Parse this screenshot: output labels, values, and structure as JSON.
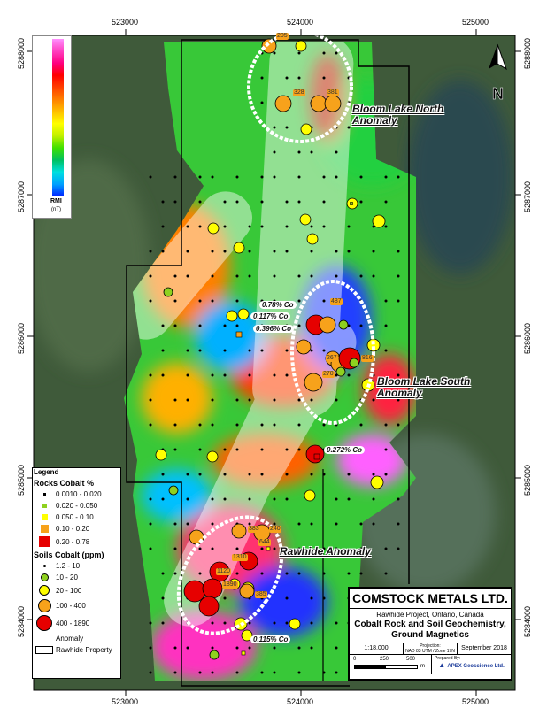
{
  "axes": {
    "x_ticks": [
      "523000",
      "524000",
      "525000"
    ],
    "y_ticks": [
      "5288000",
      "5287000",
      "5286000",
      "5285000",
      "5284000"
    ]
  },
  "colorbar": {
    "label": "RMI",
    "unit": "(nT)",
    "colors": [
      "#0020ff",
      "#00a0ff",
      "#00e0e0",
      "#00c060",
      "#40e000",
      "#c0f000",
      "#ffff00",
      "#ffc000",
      "#ff8000",
      "#ff4000",
      "#ff0000",
      "#ff0080",
      "#ff40c0",
      "#ff90ff"
    ]
  },
  "anomalies": {
    "north": [
      "Bloom Lake North",
      "Anomaly"
    ],
    "south": [
      "Bloom Lake South",
      "Anomaly"
    ],
    "rawhide": "Rawhide Anomaly"
  },
  "rock_labels": [
    "0.78% Co",
    "0.117% Co",
    "0.396% Co",
    "0.272% Co",
    "0.115% Co"
  ],
  "soil_labels": [
    "205",
    "328",
    "381",
    "487",
    "267",
    "816",
    "270",
    "383",
    "240",
    "644",
    "1310",
    "1120",
    "1890",
    "385"
  ],
  "legend": {
    "title": "Legend",
    "rocks_title": "Rocks Cobalt %",
    "rocks": [
      "0.0010 - 0.020",
      "0.020 - 0.050",
      "0.050 - 0.10",
      "0.10 - 0.20",
      "0.20 - 0.78"
    ],
    "soils_title": "Soils Cobalt (ppm)",
    "soils": [
      "1.2 - 10",
      "10 - 20",
      "20 - 100",
      "100 - 400",
      "400 - 1890"
    ],
    "anomaly": "Anomaly",
    "property": "Rawhide Property",
    "colors": [
      "#000000",
      "#8fd11f",
      "#ffff00",
      "#f7a21b",
      "#e60000"
    ]
  },
  "title_block": {
    "company": "COMSTOCK METALS LTD.",
    "project": "Rawhide Project, Ontario, Canada",
    "title1": "Cobalt  Rock and Soil Geochemistry,",
    "title2": "Ground Magnetics",
    "scale": "1:18,000",
    "projection_label": "Projection:",
    "projection": "NAD 83 UTM / Zone 17N",
    "date": "September 2018",
    "scalebar": [
      "0",
      "250",
      "500"
    ],
    "scalebar_unit": "m",
    "prepared_by": "Prepared By:",
    "logo": "APEX Geoscience Ltd."
  }
}
